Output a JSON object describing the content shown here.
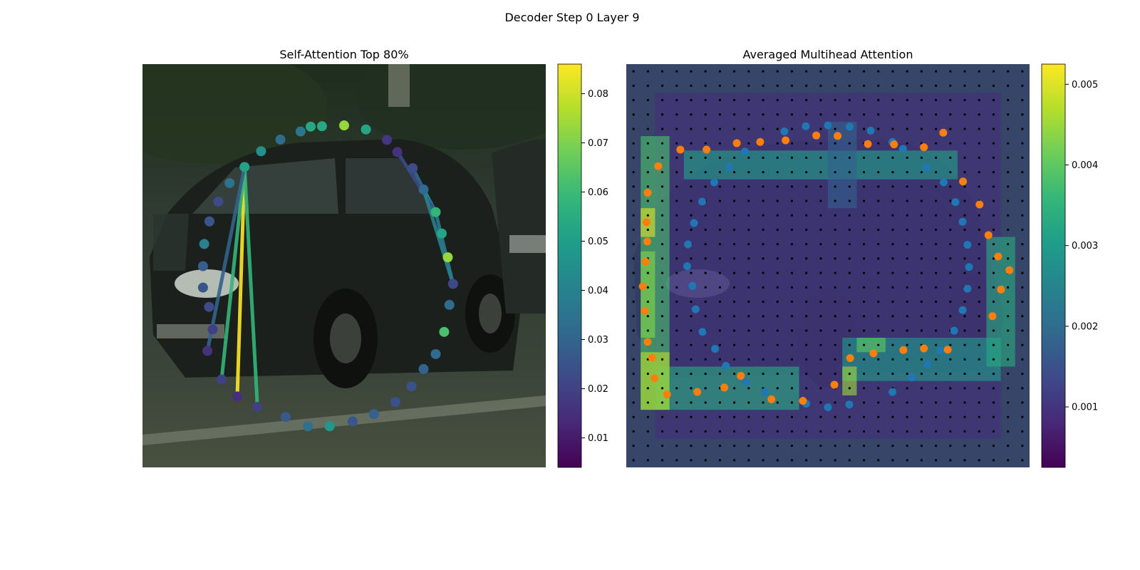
{
  "figure": {
    "suptitle": "Decoder Step 0 Layer 9"
  },
  "colormap": {
    "name": "viridis",
    "stops": [
      "#440154",
      "#482878",
      "#3e4989",
      "#31688e",
      "#26828e",
      "#1f9e89",
      "#35b779",
      "#6ece58",
      "#b5de2b",
      "#fde725"
    ]
  },
  "colors": {
    "pred_points": "#1f77b4",
    "gt_points": "#ff7f0e",
    "grid_points": "#000000"
  },
  "chart_data": [
    {
      "type": "scatter",
      "title": "Self-Attention Top 80%",
      "description_of_background": "car photo",
      "colorbar": {
        "min": 0.004,
        "max": 0.086,
        "ticks": [
          "0.01",
          "0.02",
          "0.03",
          "0.04",
          "0.05",
          "0.06",
          "0.07",
          "0.08"
        ]
      },
      "points": [
        [
          0.5,
          0.152,
          0.073
        ],
        [
          0.554,
          0.162,
          0.052
        ],
        [
          0.606,
          0.188,
          0.017
        ],
        [
          0.632,
          0.218,
          0.016
        ],
        [
          0.67,
          0.258,
          0.023
        ],
        [
          0.697,
          0.311,
          0.032
        ],
        [
          0.727,
          0.367,
          0.058
        ],
        [
          0.742,
          0.42,
          0.052
        ],
        [
          0.757,
          0.479,
          0.073
        ],
        [
          0.77,
          0.545,
          0.022
        ],
        [
          0.761,
          0.597,
          0.032
        ],
        [
          0.748,
          0.664,
          0.062
        ],
        [
          0.727,
          0.719,
          0.032
        ],
        [
          0.697,
          0.756,
          0.03
        ],
        [
          0.667,
          0.799,
          0.025
        ],
        [
          0.627,
          0.838,
          0.025
        ],
        [
          0.574,
          0.868,
          0.03
        ],
        [
          0.521,
          0.886,
          0.026
        ],
        [
          0.464,
          0.898,
          0.048
        ],
        [
          0.41,
          0.898,
          0.034
        ],
        [
          0.355,
          0.875,
          0.027
        ],
        [
          0.285,
          0.85,
          0.02
        ],
        [
          0.235,
          0.824,
          0.015
        ],
        [
          0.196,
          0.782,
          0.02
        ],
        [
          0.161,
          0.711,
          0.016
        ],
        [
          0.174,
          0.658,
          0.02
        ],
        [
          0.165,
          0.602,
          0.023
        ],
        [
          0.15,
          0.554,
          0.026
        ],
        [
          0.15,
          0.501,
          0.028
        ],
        [
          0.153,
          0.446,
          0.04
        ],
        [
          0.166,
          0.39,
          0.026
        ],
        [
          0.188,
          0.341,
          0.023
        ],
        [
          0.216,
          0.295,
          0.035
        ],
        [
          0.253,
          0.255,
          0.051
        ],
        [
          0.294,
          0.216,
          0.045
        ],
        [
          0.342,
          0.187,
          0.033
        ],
        [
          0.392,
          0.167,
          0.036
        ],
        [
          0.445,
          0.154,
          0.053
        ],
        [
          0.417,
          0.155,
          0.053
        ]
      ],
      "edges": [
        [
          33,
          22,
          0.086
        ],
        [
          33,
          23,
          0.058
        ],
        [
          33,
          21,
          0.058
        ],
        [
          33,
          24,
          0.03
        ],
        [
          6,
          4,
          0.032
        ],
        [
          6,
          5,
          0.045
        ],
        [
          6,
          3,
          0.023
        ],
        [
          9,
          5,
          0.04
        ],
        [
          9,
          6,
          0.038
        ]
      ],
      "grid": false
    },
    {
      "type": "heatmap",
      "title": "Averaged Multihead Attention",
      "colorbar": {
        "min": 0.00025,
        "max": 0.00525,
        "ticks": [
          "0.001",
          "0.002",
          "0.003",
          "0.004",
          "0.005"
        ]
      },
      "grid_size": 28,
      "series": [
        {
          "name": "predicted",
          "points": [
            [
              0.5,
              0.152
            ],
            [
              0.554,
              0.155
            ],
            [
              0.606,
              0.165
            ],
            [
              0.66,
              0.193
            ],
            [
              0.686,
              0.21
            ],
            [
              0.744,
              0.257
            ],
            [
              0.787,
              0.293
            ],
            [
              0.816,
              0.342
            ],
            [
              0.834,
              0.391
            ],
            [
              0.846,
              0.448
            ],
            [
              0.85,
              0.503
            ],
            [
              0.846,
              0.557
            ],
            [
              0.834,
              0.61
            ],
            [
              0.813,
              0.661
            ],
            [
              0.779,
              0.71
            ],
            [
              0.747,
              0.745
            ],
            [
              0.708,
              0.777
            ],
            [
              0.66,
              0.813
            ],
            [
              0.553,
              0.844
            ],
            [
              0.5,
              0.851
            ],
            [
              0.446,
              0.842
            ],
            [
              0.344,
              0.813
            ],
            [
              0.296,
              0.788
            ],
            [
              0.247,
              0.748
            ],
            [
              0.22,
              0.706
            ],
            [
              0.189,
              0.664
            ],
            [
              0.172,
              0.608
            ],
            [
              0.164,
              0.55
            ],
            [
              0.151,
              0.501
            ],
            [
              0.153,
              0.447
            ],
            [
              0.168,
              0.394
            ],
            [
              0.188,
              0.341
            ],
            [
              0.218,
              0.293
            ],
            [
              0.255,
              0.256
            ],
            [
              0.294,
              0.217
            ],
            [
              0.392,
              0.167
            ],
            [
              0.445,
              0.154
            ]
          ]
        },
        {
          "name": "ground_truth",
          "points": [
            [
              0.786,
              0.17
            ],
            [
              0.738,
              0.206
            ],
            [
              0.664,
              0.199
            ],
            [
              0.599,
              0.198
            ],
            [
              0.524,
              0.178
            ],
            [
              0.471,
              0.177
            ],
            [
              0.395,
              0.189
            ],
            [
              0.332,
              0.193
            ],
            [
              0.274,
              0.196
            ],
            [
              0.199,
              0.212
            ],
            [
              0.134,
              0.212
            ],
            [
              0.079,
              0.253
            ],
            [
              0.053,
              0.319
            ],
            [
              0.05,
              0.392
            ],
            [
              0.052,
              0.44
            ],
            [
              0.048,
              0.49
            ],
            [
              0.041,
              0.551
            ],
            [
              0.046,
              0.612
            ],
            [
              0.053,
              0.689
            ],
            [
              0.064,
              0.728
            ],
            [
              0.07,
              0.779
            ],
            [
              0.101,
              0.819
            ],
            [
              0.176,
              0.813
            ],
            [
              0.243,
              0.802
            ],
            [
              0.284,
              0.773
            ],
            [
              0.36,
              0.831
            ],
            [
              0.438,
              0.835
            ],
            [
              0.516,
              0.795
            ],
            [
              0.555,
              0.729
            ],
            [
              0.613,
              0.717
            ],
            [
              0.687,
              0.709
            ],
            [
              0.738,
              0.705
            ],
            [
              0.797,
              0.708
            ],
            [
              0.908,
              0.625
            ],
            [
              0.929,
              0.559
            ],
            [
              0.95,
              0.511
            ],
            [
              0.922,
              0.477
            ],
            [
              0.898,
              0.424
            ],
            [
              0.876,
              0.348
            ],
            [
              0.835,
              0.291
            ]
          ]
        }
      ],
      "heat_regions": [
        {
          "row": 0,
          "col": 0,
          "rows": 28,
          "cols": 28,
          "value": 0.0015
        },
        {
          "row": 2,
          "col": 2,
          "rows": 24,
          "cols": 24,
          "value": 0.0009
        },
        {
          "row": 5,
          "col": 1,
          "rows": 19,
          "cols": 2,
          "value": 0.0038
        },
        {
          "row": 6,
          "col": 4,
          "rows": 2,
          "cols": 19,
          "value": 0.0031
        },
        {
          "row": 21,
          "col": 2,
          "rows": 3,
          "cols": 10,
          "value": 0.0033
        },
        {
          "row": 19,
          "col": 15,
          "rows": 3,
          "cols": 11,
          "value": 0.003
        },
        {
          "row": 12,
          "col": 25,
          "rows": 9,
          "cols": 2,
          "value": 0.0033
        },
        {
          "row": 21,
          "col": 15,
          "rows": 2,
          "cols": 1,
          "value": 0.0045
        },
        {
          "row": 19,
          "col": 16,
          "rows": 1,
          "cols": 2,
          "value": 0.004
        },
        {
          "row": 10,
          "col": 1,
          "rows": 2,
          "cols": 1,
          "value": 0.005
        },
        {
          "row": 20,
          "col": 1,
          "rows": 4,
          "cols": 2,
          "value": 0.0047
        },
        {
          "row": 13,
          "col": 1,
          "rows": 6,
          "cols": 1,
          "value": 0.0043
        },
        {
          "row": 4,
          "col": 14,
          "rows": 6,
          "cols": 2,
          "value": 0.0018
        }
      ]
    }
  ]
}
